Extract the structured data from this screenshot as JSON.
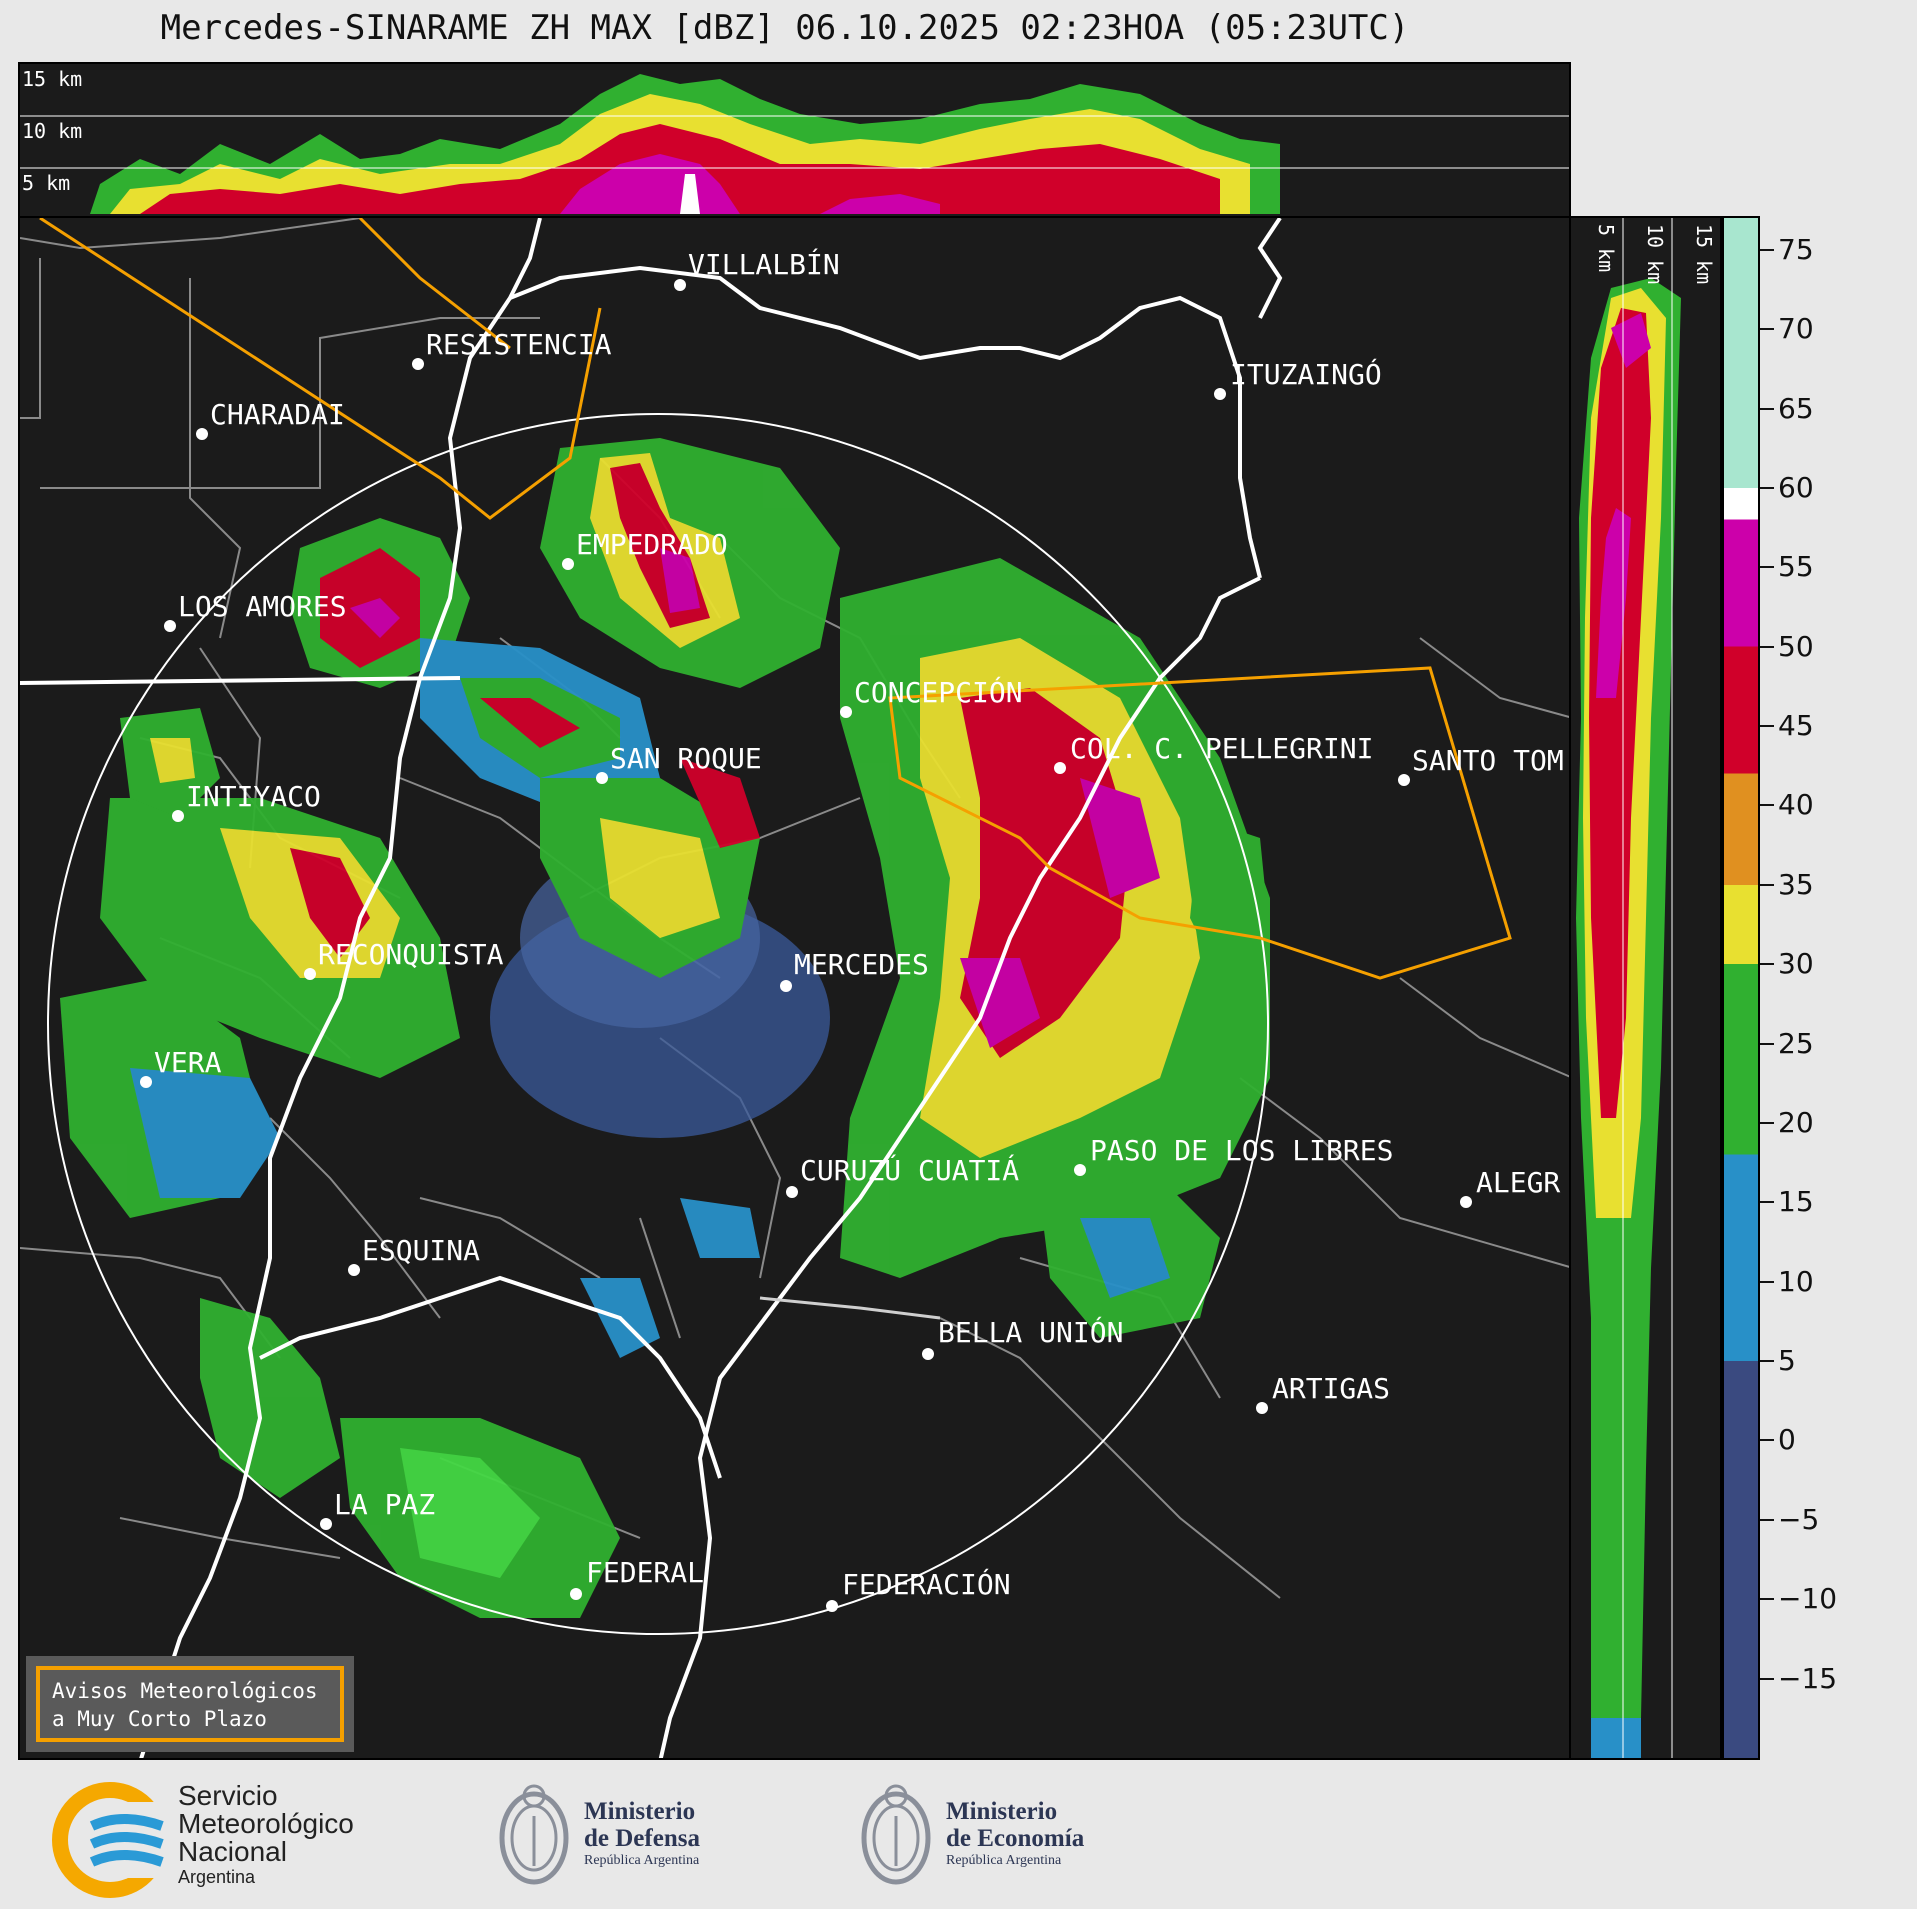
{
  "title": "Mercedes-SINARAME ZH MAX [dBZ] 06.10.2025 02:23HOA (05:23UTC)",
  "height_labels": [
    "15 km",
    "10 km",
    "5 km"
  ],
  "colorbar": {
    "ticks": [
      "75",
      "70",
      "65",
      "60",
      "55",
      "50",
      "45",
      "40",
      "35",
      "30",
      "25",
      "20",
      "15",
      "10",
      "5",
      "0",
      "−5",
      "−10",
      "−15"
    ],
    "range": [
      -20,
      77
    ],
    "bands": [
      {
        "from": 60,
        "to": 77,
        "color": "#a8e6cf"
      },
      {
        "from": 58,
        "to": 60,
        "color": "#ffffff"
      },
      {
        "from": 50,
        "to": 58,
        "color": "#cc00aa"
      },
      {
        "from": 42,
        "to": 50,
        "color": "#d0002a"
      },
      {
        "from": 35,
        "to": 42,
        "color": "#e09020"
      },
      {
        "from": 30,
        "to": 35,
        "color": "#e8e030"
      },
      {
        "from": 18,
        "to": 30,
        "color": "#30b030"
      },
      {
        "from": 5,
        "to": 18,
        "color": "#2890c8"
      },
      {
        "from": -20,
        "to": 5,
        "color": "#3a4a80"
      }
    ]
  },
  "cities": [
    {
      "name": "VILLALBÍN"
    },
    {
      "name": "RESISTENCIA"
    },
    {
      "name": "CHARADAI"
    },
    {
      "name": "ITUZAINGÓ"
    },
    {
      "name": "EMPEDRADO"
    },
    {
      "name": "LOS AMORES"
    },
    {
      "name": "CONCEPCIÓN"
    },
    {
      "name": "SAN ROQUE"
    },
    {
      "name": "COL. C. PELLEGRINI"
    },
    {
      "name": "SANTO TOM"
    },
    {
      "name": "INTIYACO"
    },
    {
      "name": "MERCEDES"
    },
    {
      "name": "RECONQUISTA"
    },
    {
      "name": "VERA"
    },
    {
      "name": "PASO DE LOS LIBRES"
    },
    {
      "name": "CURUZÚ CUATIÁ"
    },
    {
      "name": "ALEGR"
    },
    {
      "name": "ESQUINA"
    },
    {
      "name": "BELLA UNIÓN"
    },
    {
      "name": "ARTIGAS"
    },
    {
      "name": "LA PAZ"
    },
    {
      "name": "FEDERAL"
    },
    {
      "name": "FEDERACIÓN"
    }
  ],
  "warning_box": {
    "line1": "Avisos Meteorológicos",
    "line2": "a Muy Corto Plazo"
  },
  "logos": {
    "smn": [
      "Servicio",
      "Meteorológico",
      "Nacional",
      "Argentina"
    ],
    "defensa": [
      "Ministerio",
      "de Defensa",
      "República Argentina"
    ],
    "economia": [
      "Ministerio",
      "de Economía",
      "República Argentina"
    ]
  },
  "colors": {
    "background": "#1b1b1b",
    "warning_outline": "#f5a000",
    "coast": "#ffffff",
    "borders": "#8a8a8a"
  }
}
